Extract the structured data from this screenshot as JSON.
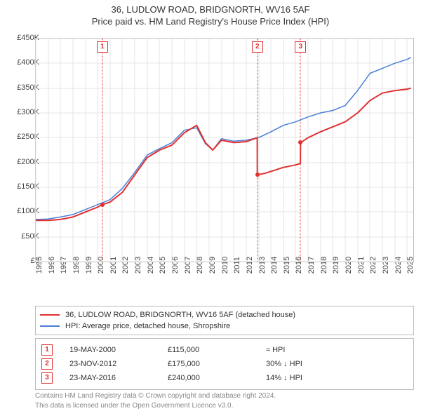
{
  "title_line1": "36, LUDLOW ROAD, BRIDGNORTH, WV16 5AF",
  "title_line2": "Price paid vs. HM Land Registry's House Price Index (HPI)",
  "chart": {
    "type": "line",
    "x_range_years": [
      1995,
      2025.5
    ],
    "y_range": [
      0,
      450000
    ],
    "ytick_step": 50000,
    "ytick_labels": [
      "£0",
      "£50K",
      "£100K",
      "£150K",
      "£200K",
      "£250K",
      "£300K",
      "£350K",
      "£400K",
      "£450K"
    ],
    "xtick_years": [
      1995,
      1996,
      1997,
      1998,
      1999,
      2000,
      2001,
      2002,
      2003,
      2004,
      2005,
      2006,
      2007,
      2008,
      2009,
      2010,
      2011,
      2012,
      2013,
      2014,
      2015,
      2016,
      2017,
      2018,
      2019,
      2020,
      2021,
      2022,
      2023,
      2024,
      2025
    ],
    "background_color": "#ffffff",
    "grid_color": "#e6e6e6",
    "border_color": "#bbbbbb",
    "series_property": {
      "color": "#e03030",
      "width": 2,
      "data": [
        [
          1995.0,
          83000
        ],
        [
          1996.0,
          83000
        ],
        [
          1997.0,
          85000
        ],
        [
          1998.0,
          90000
        ],
        [
          1999.0,
          100000
        ],
        [
          2000.0,
          110000
        ],
        [
          2000.38,
          115000
        ],
        [
          2001.0,
          120000
        ],
        [
          2002.0,
          140000
        ],
        [
          2003.0,
          175000
        ],
        [
          2004.0,
          210000
        ],
        [
          2005.0,
          225000
        ],
        [
          2006.0,
          235000
        ],
        [
          2007.0,
          260000
        ],
        [
          2008.0,
          275000
        ],
        [
          2008.7,
          240000
        ],
        [
          2009.3,
          225000
        ],
        [
          2010.0,
          245000
        ],
        [
          2011.0,
          240000
        ],
        [
          2012.0,
          242000
        ],
        [
          2012.89,
          250000
        ],
        [
          2012.9,
          175000
        ],
        [
          2013.5,
          178000
        ],
        [
          2014.0,
          182000
        ],
        [
          2015.0,
          190000
        ],
        [
          2016.0,
          195000
        ],
        [
          2016.38,
          198000
        ],
        [
          2016.39,
          240000
        ],
        [
          2017.0,
          250000
        ],
        [
          2018.0,
          262000
        ],
        [
          2019.0,
          272000
        ],
        [
          2020.0,
          282000
        ],
        [
          2021.0,
          300000
        ],
        [
          2022.0,
          325000
        ],
        [
          2023.0,
          340000
        ],
        [
          2024.0,
          345000
        ],
        [
          2025.0,
          348000
        ],
        [
          2025.3,
          350000
        ]
      ]
    },
    "series_hpi": {
      "color": "#4a7fd6",
      "width": 1.5,
      "data": [
        [
          1995.0,
          85000
        ],
        [
          1996.0,
          86000
        ],
        [
          1997.0,
          90000
        ],
        [
          1998.0,
          95000
        ],
        [
          1999.0,
          105000
        ],
        [
          2000.0,
          115000
        ],
        [
          2001.0,
          125000
        ],
        [
          2002.0,
          148000
        ],
        [
          2003.0,
          180000
        ],
        [
          2004.0,
          215000
        ],
        [
          2005.0,
          228000
        ],
        [
          2006.0,
          240000
        ],
        [
          2007.0,
          265000
        ],
        [
          2008.0,
          270000
        ],
        [
          2008.7,
          238000
        ],
        [
          2009.3,
          225000
        ],
        [
          2010.0,
          248000
        ],
        [
          2011.0,
          243000
        ],
        [
          2012.0,
          245000
        ],
        [
          2013.0,
          250000
        ],
        [
          2014.0,
          262000
        ],
        [
          2015.0,
          275000
        ],
        [
          2016.0,
          282000
        ],
        [
          2017.0,
          292000
        ],
        [
          2018.0,
          300000
        ],
        [
          2019.0,
          305000
        ],
        [
          2020.0,
          315000
        ],
        [
          2021.0,
          345000
        ],
        [
          2022.0,
          380000
        ],
        [
          2023.0,
          390000
        ],
        [
          2024.0,
          400000
        ],
        [
          2025.0,
          408000
        ],
        [
          2025.3,
          412000
        ]
      ]
    },
    "markers": [
      {
        "num": "1",
        "year": 2000.38
      },
      {
        "num": "2",
        "year": 2012.9
      },
      {
        "num": "3",
        "year": 2016.39
      }
    ],
    "sale_points": [
      {
        "year": 2000.38,
        "price": 115000
      },
      {
        "year": 2012.9,
        "price": 175000
      },
      {
        "year": 2016.39,
        "price": 240000
      }
    ]
  },
  "legend": {
    "items": [
      {
        "label": "36, LUDLOW ROAD, BRIDGNORTH, WV16 5AF (detached house)",
        "color": "#e03030"
      },
      {
        "label": "HPI: Average price, detached house, Shropshire",
        "color": "#4a7fd6"
      }
    ]
  },
  "transactions": [
    {
      "num": "1",
      "date": "19-MAY-2000",
      "price": "£115,000",
      "hpi": "≈ HPI"
    },
    {
      "num": "2",
      "date": "23-NOV-2012",
      "price": "£175,000",
      "hpi": "30% ↓ HPI"
    },
    {
      "num": "3",
      "date": "23-MAY-2016",
      "price": "£240,000",
      "hpi": "14% ↓ HPI"
    }
  ],
  "footer_line1": "Contains HM Land Registry data © Crown copyright and database right 2024.",
  "footer_line2": "This data is licensed under the Open Government Licence v3.0."
}
